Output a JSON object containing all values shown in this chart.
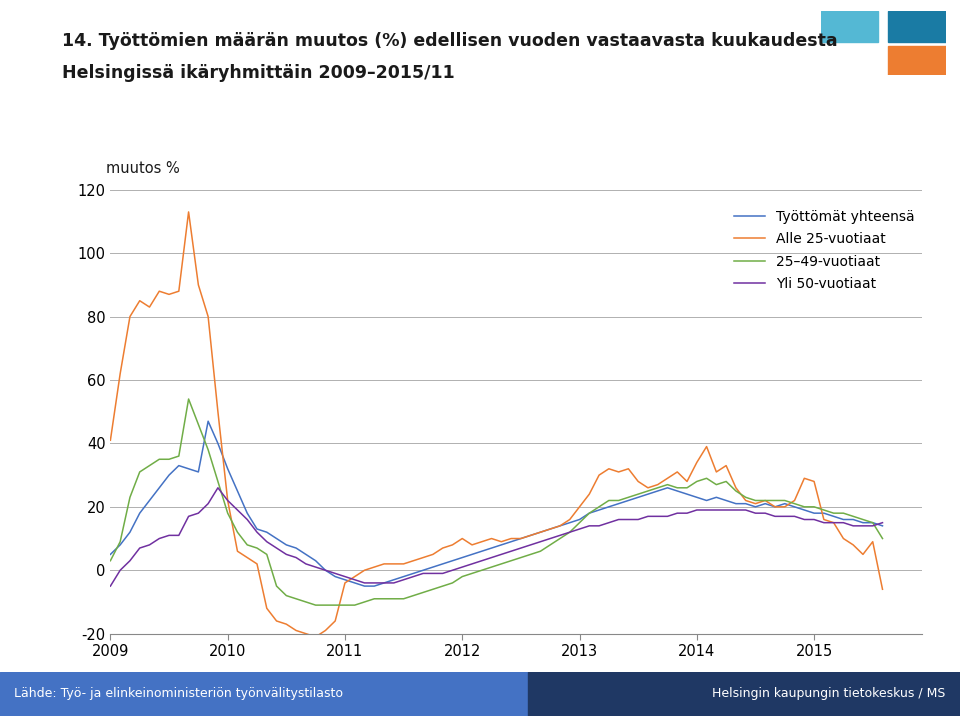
{
  "title_line1": "14. Työttömien määrän muutos (%) edellisen vuoden vastaavasta kuukaudesta",
  "title_line2": "Helsingissä ikäryhmittäin 2009–2015/11",
  "ylabel": "muutos %",
  "ylim": [
    -20,
    120
  ],
  "yticks": [
    -20,
    0,
    20,
    40,
    60,
    80,
    100,
    120
  ],
  "footer_left": "Lähde: Työ- ja elinkeinoministeriön työnvälitystilasto",
  "footer_right": "Helsingin kaupungin tietokeskus / MS",
  "legend_labels": [
    "Työttömät yhteensä",
    "Alle 25-vuotiaat",
    "25–49-vuotiaat",
    "Yli 50-vuotiaat"
  ],
  "colors": [
    "#4472C4",
    "#ED7D31",
    "#70AD47",
    "#7030A0"
  ],
  "background_color": "#FFFFFF",
  "grid_color": "#B0B0B0",
  "xtick_labels": [
    "2009",
    "2010",
    "2011",
    "2012",
    "2013",
    "2014",
    "2015"
  ],
  "series_total": [
    5,
    8,
    12,
    18,
    22,
    26,
    30,
    33,
    32,
    31,
    47,
    40,
    32,
    25,
    18,
    13,
    12,
    10,
    8,
    7,
    5,
    3,
    0,
    -2,
    -3,
    -4,
    -5,
    -5,
    -4,
    -3,
    -2,
    -1,
    0,
    1,
    2,
    3,
    4,
    5,
    6,
    7,
    8,
    9,
    10,
    11,
    12,
    13,
    14,
    15,
    16,
    18,
    19,
    20,
    21,
    22,
    23,
    24,
    25,
    26,
    25,
    24,
    23,
    22,
    23,
    22,
    21,
    21,
    20,
    21,
    20,
    21,
    20,
    19,
    18,
    18,
    17,
    16,
    16,
    15,
    15,
    14
  ],
  "series_alle25": [
    41,
    62,
    80,
    85,
    83,
    88,
    87,
    88,
    113,
    90,
    80,
    50,
    22,
    6,
    4,
    2,
    -12,
    -16,
    -17,
    -19,
    -20,
    -21,
    -19,
    -16,
    -4,
    -2,
    0,
    1,
    2,
    2,
    2,
    3,
    4,
    5,
    7,
    8,
    10,
    8,
    9,
    10,
    9,
    10,
    10,
    11,
    12,
    13,
    14,
    16,
    20,
    24,
    30,
    32,
    31,
    32,
    28,
    26,
    27,
    29,
    31,
    28,
    34,
    39,
    31,
    33,
    26,
    22,
    21,
    22,
    20,
    20,
    22,
    29,
    28,
    16,
    15,
    10,
    8,
    5,
    9,
    -6
  ],
  "series_25_49": [
    3,
    9,
    23,
    31,
    33,
    35,
    35,
    36,
    54,
    46,
    38,
    28,
    18,
    12,
    8,
    7,
    5,
    -5,
    -8,
    -9,
    -10,
    -11,
    -11,
    -11,
    -11,
    -11,
    -10,
    -9,
    -9,
    -9,
    -9,
    -8,
    -7,
    -6,
    -5,
    -4,
    -2,
    -1,
    0,
    1,
    2,
    3,
    4,
    5,
    6,
    8,
    10,
    12,
    15,
    18,
    20,
    22,
    22,
    23,
    24,
    25,
    26,
    27,
    26,
    26,
    28,
    29,
    27,
    28,
    25,
    23,
    22,
    22,
    22,
    22,
    21,
    20,
    20,
    19,
    18,
    18,
    17,
    16,
    15,
    10
  ],
  "series_yli50": [
    -5,
    0,
    3,
    7,
    8,
    10,
    11,
    11,
    17,
    18,
    21,
    26,
    22,
    19,
    16,
    12,
    9,
    7,
    5,
    4,
    2,
    1,
    0,
    -1,
    -2,
    -3,
    -4,
    -4,
    -4,
    -4,
    -3,
    -2,
    -1,
    -1,
    -1,
    0,
    1,
    2,
    3,
    4,
    5,
    6,
    7,
    8,
    9,
    10,
    11,
    12,
    13,
    14,
    14,
    15,
    16,
    16,
    16,
    17,
    17,
    17,
    18,
    18,
    19,
    19,
    19,
    19,
    19,
    19,
    18,
    18,
    17,
    17,
    17,
    16,
    16,
    15,
    15,
    15,
    14,
    14,
    14,
    15
  ]
}
